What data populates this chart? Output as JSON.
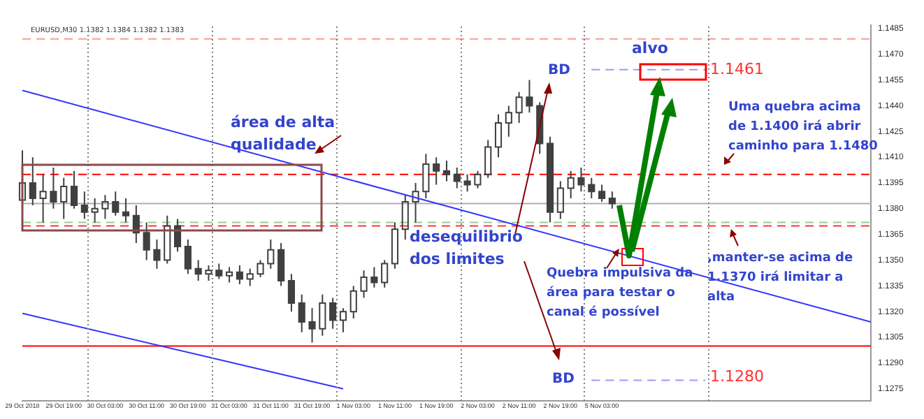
{
  "chart_data": {
    "type": "candlestick",
    "title": "EURUSD,M30",
    "subtitle": "1.1382 1.1384 1.1382 1.1383",
    "categories": [
      "29 Oct 2018",
      null,
      null,
      null,
      "29 Oct 19:00",
      null,
      null,
      null,
      "30 Oct 03:00",
      null,
      null,
      null,
      "30 Oct 11:00",
      null,
      null,
      null,
      "30 Oct 19:00",
      null,
      null,
      null,
      "31 Oct 03:00",
      null,
      null,
      null,
      "31 Oct 11:00",
      null,
      null,
      null,
      "31 Oct 19:00",
      null,
      null,
      null,
      "1 Nov 03:00",
      null,
      null,
      null,
      "1 Nov 11:00",
      null,
      null,
      null,
      "1 Nov 19:00",
      null,
      null,
      null,
      "2 Nov 03:00",
      null,
      null,
      null,
      "2 Nov 11:00",
      null,
      null,
      null,
      "2 Nov 19:00",
      null,
      null,
      null,
      "5 Nov 03:00",
      null,
      null,
      null,
      null,
      null,
      null,
      null,
      null,
      null,
      null,
      null,
      null,
      null,
      null,
      null,
      null,
      null,
      null,
      null,
      null,
      null,
      null,
      null,
      null,
      null,
      null
    ],
    "ylim": [
      1.1268,
      1.1487
    ],
    "yticks": [
      {
        "value": 1.1275,
        "label": "1.1275"
      },
      {
        "value": 1.129,
        "label": "1.1290"
      },
      {
        "value": 1.1305,
        "label": "1.1305"
      },
      {
        "value": 1.132,
        "label": "1.1320"
      },
      {
        "value": 1.1335,
        "label": "1.1335"
      },
      {
        "value": 1.135,
        "label": "1.1350"
      },
      {
        "value": 1.1365,
        "label": "1.1365"
      },
      {
        "value": 1.138,
        "label": "1.1380"
      },
      {
        "value": 1.1395,
        "label": "1.1395"
      },
      {
        "value": 1.141,
        "label": "1.1410"
      },
      {
        "value": 1.1425,
        "label": "1.1425"
      },
      {
        "value": 1.144,
        "label": "1.1440"
      },
      {
        "value": 1.1455,
        "label": "1.1455"
      },
      {
        "value": 1.147,
        "label": "1.1470"
      },
      {
        "value": 1.1485,
        "label": "1.1485"
      }
    ],
    "grid": false,
    "legend": false,
    "series": [
      {
        "color": "#404040",
        "ohlc": [
          [
            1.1385,
            1.1414,
            1.1376,
            1.1395
          ],
          [
            1.1395,
            1.141,
            1.1382,
            1.1386
          ],
          [
            1.1386,
            1.14,
            1.1372,
            1.139
          ],
          [
            1.139,
            1.1404,
            1.138,
            1.1384
          ],
          [
            1.1384,
            1.1398,
            1.1374,
            1.1393
          ],
          [
            1.1393,
            1.1402,
            1.138,
            1.1382
          ],
          [
            1.1382,
            1.139,
            1.1374,
            1.1378
          ],
          [
            1.1378,
            1.1386,
            1.1372,
            1.138
          ],
          [
            1.138,
            1.1388,
            1.1374,
            1.1384
          ],
          [
            1.1384,
            1.139,
            1.1376,
            1.1378
          ],
          [
            1.1378,
            1.1386,
            1.1372,
            1.1376
          ],
          [
            1.1376,
            1.1382,
            1.136,
            1.1366
          ],
          [
            1.1366,
            1.1372,
            1.135,
            1.1356
          ],
          [
            1.1356,
            1.1362,
            1.1345,
            1.135
          ],
          [
            1.135,
            1.1376,
            1.1348,
            1.137
          ],
          [
            1.137,
            1.1374,
            1.1355,
            1.1358
          ],
          [
            1.1358,
            1.1362,
            1.1342,
            1.1345
          ],
          [
            1.1345,
            1.135,
            1.1338,
            1.1342
          ],
          [
            1.1342,
            1.1347,
            1.1338,
            1.1344
          ],
          [
            1.1344,
            1.1348,
            1.1339,
            1.1341
          ],
          [
            1.1341,
            1.1346,
            1.1337,
            1.1343
          ],
          [
            1.1343,
            1.1347,
            1.1336,
            1.1339
          ],
          [
            1.1339,
            1.1345,
            1.1335,
            1.1342
          ],
          [
            1.1342,
            1.135,
            1.134,
            1.1348
          ],
          [
            1.1348,
            1.1362,
            1.1345,
            1.1356
          ],
          [
            1.1356,
            1.136,
            1.1335,
            1.1338
          ],
          [
            1.1338,
            1.1342,
            1.132,
            1.1325
          ],
          [
            1.1325,
            1.133,
            1.1308,
            1.1314
          ],
          [
            1.1314,
            1.1322,
            1.1302,
            1.131
          ],
          [
            1.131,
            1.133,
            1.1306,
            1.1325
          ],
          [
            1.1325,
            1.1328,
            1.131,
            1.1315
          ],
          [
            1.1315,
            1.1322,
            1.1308,
            1.132
          ],
          [
            1.132,
            1.1335,
            1.1316,
            1.1332
          ],
          [
            1.1332,
            1.1344,
            1.1328,
            1.134
          ],
          [
            1.134,
            1.1346,
            1.1334,
            1.1337
          ],
          [
            1.1337,
            1.135,
            1.1334,
            1.1348
          ],
          [
            1.1348,
            1.1372,
            1.1345,
            1.1368
          ],
          [
            1.1368,
            1.1388,
            1.1362,
            1.1384
          ],
          [
            1.1384,
            1.1395,
            1.1372,
            1.139
          ],
          [
            1.139,
            1.1412,
            1.1386,
            1.1406
          ],
          [
            1.1406,
            1.141,
            1.1394,
            1.1402
          ],
          [
            1.1402,
            1.1408,
            1.1396,
            1.14
          ],
          [
            1.14,
            1.1404,
            1.1392,
            1.1396
          ],
          [
            1.1396,
            1.14,
            1.139,
            1.1394
          ],
          [
            1.1394,
            1.1402,
            1.1392,
            1.14
          ],
          [
            1.14,
            1.142,
            1.1398,
            1.1416
          ],
          [
            1.1416,
            1.1435,
            1.141,
            1.143
          ],
          [
            1.143,
            1.144,
            1.1422,
            1.1436
          ],
          [
            1.1436,
            1.1448,
            1.143,
            1.1445
          ],
          [
            1.1445,
            1.1455,
            1.1436,
            1.144
          ],
          [
            1.144,
            1.1442,
            1.1412,
            1.1418
          ],
          [
            1.1418,
            1.1422,
            1.1372,
            1.1378
          ],
          [
            1.1378,
            1.1396,
            1.1374,
            1.1392
          ],
          [
            1.1392,
            1.1402,
            1.1386,
            1.1398
          ],
          [
            1.1398,
            1.1404,
            1.139,
            1.1394
          ],
          [
            1.1394,
            1.1398,
            1.1386,
            1.139
          ],
          [
            1.139,
            1.1394,
            1.1384,
            1.1386
          ],
          [
            1.1386,
            1.139,
            1.138,
            1.1383
          ],
          null,
          null,
          null,
          null,
          null,
          null,
          null,
          null,
          null,
          null,
          null,
          null,
          null,
          null,
          null,
          null,
          null,
          null,
          null,
          null,
          null,
          null,
          null,
          null,
          null
        ]
      },
      {
        "type": "line",
        "color": "#3333ff",
        "values": [
          1.1449,
          null,
          null,
          null,
          null,
          null,
          null,
          null,
          null,
          null,
          null,
          null,
          null,
          null,
          null,
          null,
          null,
          null,
          null,
          null,
          null,
          null,
          null,
          null,
          null,
          null,
          null,
          null,
          null,
          null,
          null,
          null,
          null,
          null,
          null,
          null,
          null,
          null,
          null,
          null,
          null,
          null,
          null,
          null,
          null,
          null,
          null,
          null,
          null,
          null,
          null,
          null,
          null,
          null,
          null,
          null,
          null,
          null,
          null,
          null,
          null,
          null,
          null,
          null,
          null,
          null,
          null,
          null,
          null,
          null,
          null,
          null,
          null,
          null,
          null,
          null,
          null,
          null,
          null,
          null,
          null,
          null,
          1.1314
        ]
      },
      {
        "type": "line",
        "color": "#3333ff",
        "values": [
          1.1319,
          null,
          null,
          null,
          null,
          null,
          null,
          null,
          null,
          null,
          null,
          null,
          null,
          null,
          null,
          null,
          null,
          null,
          null,
          null,
          null,
          null,
          null,
          null,
          null,
          null,
          null,
          null,
          null,
          null,
          null,
          1.1275,
          null,
          null,
          null,
          null,
          null,
          null,
          null,
          null,
          null,
          null,
          null,
          null,
          null,
          null,
          null,
          null,
          null,
          null,
          null,
          null,
          null,
          null,
          null,
          null,
          null,
          null,
          null,
          null,
          null,
          null,
          null,
          null,
          null,
          null,
          null,
          null,
          null,
          null,
          null,
          null,
          null,
          null,
          null,
          null,
          null,
          null,
          null,
          null,
          null,
          null,
          null
        ]
      },
      {
        "type": "line",
        "color": "#9999ff",
        "line_style": "dashed",
        "values": [
          null,
          null,
          null,
          null,
          null,
          null,
          null,
          null,
          null,
          null,
          null,
          null,
          null,
          null,
          null,
          null,
          null,
          null,
          null,
          null,
          null,
          null,
          null,
          null,
          null,
          null,
          null,
          null,
          null,
          null,
          null,
          null,
          null,
          null,
          null,
          null,
          null,
          null,
          null,
          null,
          null,
          null,
          null,
          null,
          null,
          null,
          null,
          null,
          null,
          null,
          null,
          null,
          null,
          null,
          null,
          1.1461,
          null,
          null,
          null,
          null,
          null,
          null,
          null,
          null,
          null,
          null,
          1.1461,
          null,
          null,
          null,
          null,
          null,
          null,
          null,
          null,
          null,
          null,
          null,
          null,
          null,
          null,
          null,
          null
        ]
      },
      {
        "type": "line",
        "color": "#9999ff",
        "line_style": "dashed",
        "values": [
          null,
          null,
          null,
          null,
          null,
          null,
          null,
          null,
          null,
          null,
          null,
          null,
          null,
          null,
          null,
          null,
          null,
          null,
          null,
          null,
          null,
          null,
          null,
          null,
          null,
          null,
          null,
          null,
          null,
          null,
          null,
          null,
          null,
          null,
          null,
          null,
          null,
          null,
          null,
          null,
          null,
          null,
          null,
          null,
          null,
          null,
          null,
          null,
          null,
          null,
          null,
          null,
          null,
          null,
          null,
          1.128,
          null,
          null,
          null,
          null,
          null,
          null,
          null,
          null,
          null,
          null,
          1.128,
          null,
          null,
          null,
          null,
          null,
          null,
          null,
          null,
          null,
          null,
          null,
          null,
          null,
          null,
          null,
          null
        ]
      }
    ],
    "ref_lines": [
      {
        "axis": "y",
        "value": 1.1479,
        "color": "#ff9999",
        "line_style": "dashed"
      },
      {
        "axis": "y",
        "value": 1.14,
        "color": "#ff0000",
        "line_style": "dashed"
      },
      {
        "axis": "y",
        "value": 1.1383,
        "color": "#b0b0b0",
        "line_style": "solid"
      },
      {
        "axis": "y",
        "value": 1.1372,
        "color": "#99cc99",
        "line_style": "dashed"
      },
      {
        "axis": "y",
        "value": 1.137,
        "color": "#ff3333",
        "line_style": "dashed"
      },
      {
        "axis": "y",
        "value": 1.13,
        "color": "#ff0000",
        "line_style": "solid"
      }
    ],
    "annotations": [
      "área de alta qualidade",
      "desequilibrio dos limites",
      "BD",
      "alvo",
      "Uma quebra acima de 1.1400 irá abrir caminho para 1.1480",
      ",manter-se acima de 1.1370 irá limitar  a alta",
      "Quebra impulsiva da área para  testar o canal é possível",
      "BD",
      "1.1461",
      "1.1280"
    ]
  }
}
